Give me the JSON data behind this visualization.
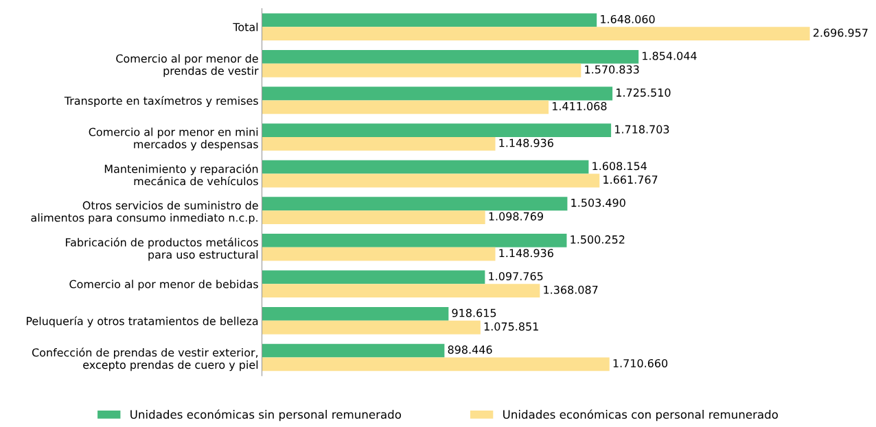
{
  "chart_data": {
    "type": "bar",
    "orientation": "horizontal",
    "categories": [
      "Total",
      "Comercio al por menor de\nprendas de vestir",
      "Transporte en taxímetros y remises",
      "Comercio al por menor en mini\nmercados y despensas",
      "Mantenimiento y reparación\nmecánica de vehículos",
      "Otros servicios de suministro de\nalimentos para consumo inmediato n.c.p.",
      "Fabricación de productos metálicos\npara uso estructural",
      "Comercio al por menor de bebidas",
      "Peluquería y otros tratamientos de belleza",
      "Confección de prendas de vestir exterior,\nexcepto prendas de cuero y piel"
    ],
    "series": [
      {
        "name": "Unidades económicas sin personal remunerado",
        "color": "#45b97c",
        "values": [
          1648060,
          1854044,
          1725510,
          1718703,
          1608154,
          1503490,
          1500252,
          1097765,
          918615,
          898446
        ],
        "value_labels": [
          "1.648.060",
          "1.854.044",
          "1.725.510",
          "1.718.703",
          "1.608.154",
          "1.503.490",
          "1.500.252",
          "1.097.765",
          "918.615",
          "898.446"
        ]
      },
      {
        "name": "Unidades económicas con personal remunerado",
        "color": "#fde08f",
        "values": [
          2696957,
          1570833,
          1411068,
          1148936,
          1661767,
          1098769,
          1148936,
          1368087,
          1075851,
          1710660
        ],
        "value_labels": [
          "2.696.957",
          "1.570.833",
          "1.411.068",
          "1.148.936",
          "1.661.767",
          "1.098.769",
          "1.148.936",
          "1.368.087",
          "1.075.851",
          "1.710.660"
        ]
      }
    ],
    "tick_labels": "y",
    "grid": false,
    "legend": "bottom"
  }
}
